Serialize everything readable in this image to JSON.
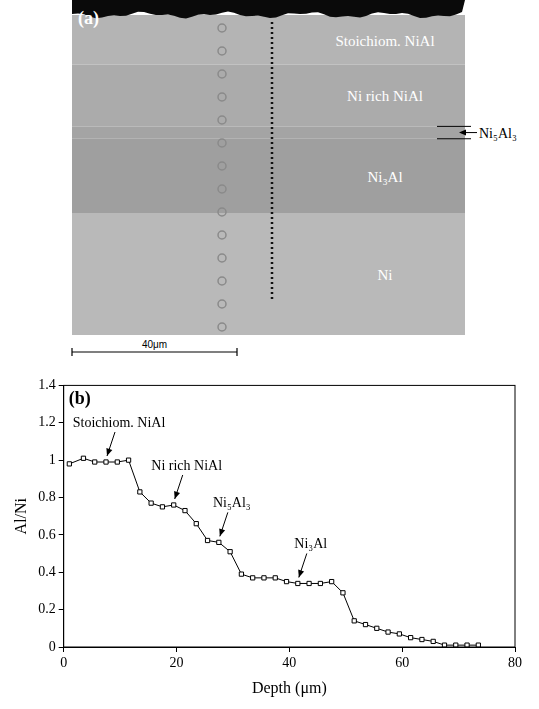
{
  "micrograph": {
    "panel": "(a)",
    "bands": [
      {
        "label": "Stoichiom. NiAl",
        "from": 0,
        "to": 12,
        "color": "#b4b4b4"
      },
      {
        "label": "Ni rich NiAl",
        "from": 12,
        "to": 27,
        "color": "#ababab"
      },
      {
        "label": "Ni₅Al₃",
        "from": 27,
        "to": 30,
        "color": "#a4a4a4"
      },
      {
        "label": "Ni₃Al",
        "from": 30,
        "to": 48,
        "color": "#9f9f9f"
      },
      {
        "label": "Ni",
        "from": 48,
        "to": 78,
        "color": "#b9b9b9"
      }
    ],
    "scale_bar": {
      "value": 40,
      "label": "40μm"
    }
  },
  "chart_data": {
    "type": "line",
    "panel": "(b)",
    "xlabel": "Depth (μm)",
    "ylabel": "Al/Ni",
    "x": [
      1,
      3.5,
      5.5,
      7.5,
      9.5,
      11.5,
      13.5,
      15.5,
      17.5,
      19.5,
      21.5,
      23.5,
      25.5,
      27.5,
      29.5,
      31.5,
      33.5,
      35.5,
      37.5,
      39.5,
      41.5,
      43.5,
      45.5,
      47.5,
      49.5,
      51.5,
      53.5,
      55.5,
      57.5,
      59.5,
      61.5,
      63.5,
      65.5,
      67.5,
      69.5,
      71.5,
      73.5
    ],
    "values": [
      0.98,
      1.01,
      0.99,
      0.99,
      0.99,
      1.0,
      0.83,
      0.77,
      0.75,
      0.76,
      0.73,
      0.66,
      0.57,
      0.56,
      0.51,
      0.39,
      0.37,
      0.37,
      0.37,
      0.35,
      0.34,
      0.34,
      0.34,
      0.35,
      0.29,
      0.14,
      0.12,
      0.1,
      0.08,
      0.07,
      0.05,
      0.04,
      0.03,
      0.01,
      0.01,
      0.01,
      0.01
    ],
    "color": "#000000",
    "marker": "square",
    "grid": false,
    "xlim": [
      0,
      80
    ],
    "xticks": [
      0,
      20,
      40,
      60,
      80
    ],
    "ylim": [
      0,
      1.4
    ],
    "yticks": [
      0,
      0.2,
      0.4,
      0.6,
      0.8,
      1,
      1.2,
      1.4
    ],
    "annotations": [
      {
        "text": "Stoichiom. NiAl",
        "x": 7.5,
        "y": 0.99
      },
      {
        "text": "Ni rich NiAl",
        "x": 19.5,
        "y": 0.76
      },
      {
        "text": "Ni₅Al₃",
        "x": 27.5,
        "y": 0.56
      },
      {
        "text": "Ni₃Al",
        "x": 41.5,
        "y": 0.34
      }
    ]
  }
}
